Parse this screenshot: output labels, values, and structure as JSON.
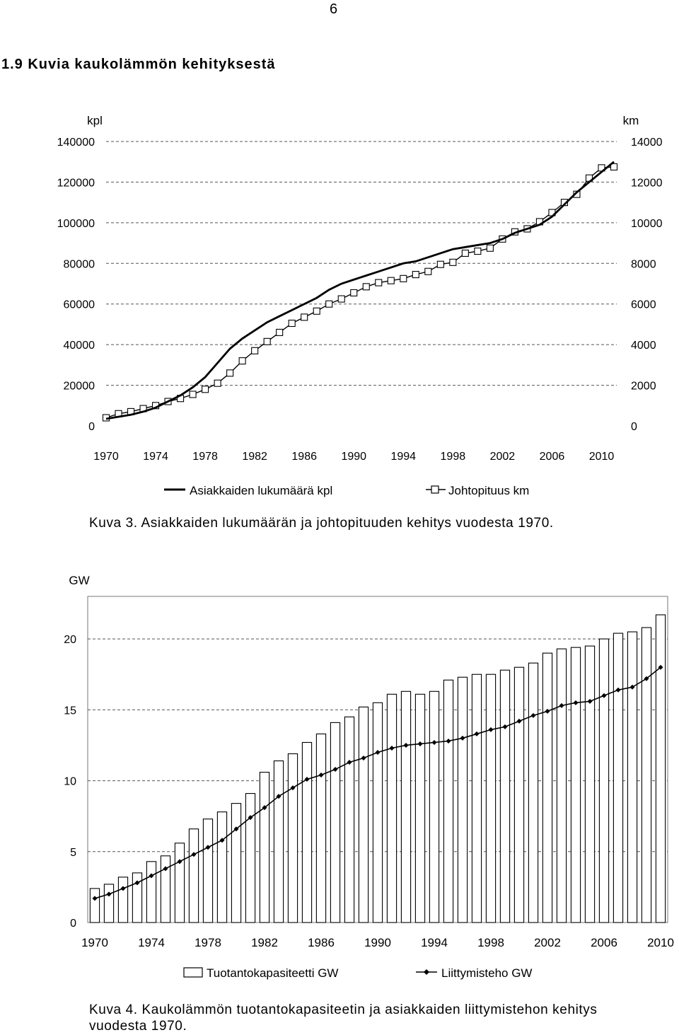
{
  "page": {
    "number": "6",
    "section_title": "1.9 Kuvia kaukolämmön kehityksestä"
  },
  "figure3": {
    "caption": "Kuva 3. Asiakkaiden lukumäärän ja johtopituuden kehitys vuodesta 1970.",
    "colors": {
      "customers_line": "#000000",
      "network_line": "#000000",
      "marker_fill": "#ffffff"
    }
  },
  "figure4": {
    "caption_line1": "Kuva 4. Kaukolämmön tuotantokapasiteetin ja asiakkaiden liittymistehon kehitys",
    "caption_line2": "vuodesta 1970.",
    "colors": {
      "bar_fill": "#ffffff",
      "bar_stroke": "#000000",
      "line": "#000000"
    }
  },
  "chart_data": [
    {
      "type": "line",
      "title": "",
      "x": [
        1970,
        1971,
        1972,
        1973,
        1974,
        1975,
        1976,
        1977,
        1978,
        1979,
        1980,
        1981,
        1982,
        1983,
        1984,
        1985,
        1986,
        1987,
        1988,
        1989,
        1990,
        1991,
        1992,
        1993,
        1994,
        1995,
        1996,
        1997,
        1998,
        1999,
        2000,
        2001,
        2002,
        2003,
        2004,
        2005,
        2006,
        2007,
        2008,
        2009,
        2010,
        2011
      ],
      "x_ticks": [
        "1970",
        "1974",
        "1978",
        "1982",
        "1986",
        "1990",
        "1994",
        "1998",
        "2002",
        "2006",
        "2010"
      ],
      "ylabel_left": "kpl",
      "ylabel_right": "km",
      "ylim_left": [
        0,
        140000
      ],
      "ylim_right": [
        0,
        14000
      ],
      "yticks_left": [
        "0",
        "20000",
        "40000",
        "60000",
        "80000",
        "100000",
        "120000",
        "140000"
      ],
      "yticks_right": [
        "0",
        "2000",
        "4000",
        "6000",
        "8000",
        "10000",
        "12000",
        "14000"
      ],
      "grid": "horizontal dashed",
      "legend": "bottom",
      "series": [
        {
          "name": "Asiakkaiden lukumäärä kpl",
          "axis": "left",
          "marker": "none",
          "values": [
            3500,
            4500,
            5500,
            7000,
            9000,
            12000,
            15000,
            19000,
            24000,
            31000,
            38000,
            43000,
            47000,
            51000,
            54000,
            57000,
            60000,
            63000,
            67000,
            70000,
            72000,
            74000,
            76000,
            78000,
            80000,
            81000,
            83000,
            85000,
            87000,
            88000,
            89000,
            90000,
            92000,
            95000,
            97000,
            99000,
            103000,
            109000,
            115000,
            120000,
            125000,
            130000
          ]
        },
        {
          "name": "Johtopituus km",
          "axis": "right",
          "marker": "square",
          "values": [
            400,
            600,
            700,
            850,
            1000,
            1200,
            1350,
            1550,
            1800,
            2100,
            2600,
            3200,
            3700,
            4150,
            4600,
            5050,
            5350,
            5650,
            6000,
            6250,
            6550,
            6850,
            7050,
            7150,
            7250,
            7450,
            7600,
            7950,
            8050,
            8500,
            8600,
            8750,
            9200,
            9550,
            9700,
            10050,
            10500,
            11000,
            11400,
            12200,
            12700,
            12750
          ]
        }
      ]
    },
    {
      "type": "bar",
      "title": "",
      "x": [
        1970,
        1971,
        1972,
        1973,
        1974,
        1975,
        1976,
        1977,
        1978,
        1979,
        1980,
        1981,
        1982,
        1983,
        1984,
        1985,
        1986,
        1987,
        1988,
        1989,
        1990,
        1991,
        1992,
        1993,
        1994,
        1995,
        1996,
        1997,
        1998,
        1999,
        2000,
        2001,
        2002,
        2003,
        2004,
        2005,
        2006,
        2007,
        2008,
        2009,
        2010
      ],
      "x_ticks": [
        "1970",
        "1974",
        "1978",
        "1982",
        "1986",
        "1990",
        "1994",
        "1998",
        "2002",
        "2006",
        "2010"
      ],
      "ylabel": "GW",
      "ylim": [
        0,
        23
      ],
      "yticks": [
        "0",
        "5",
        "10",
        "15",
        "20"
      ],
      "grid": "horizontal dashed",
      "legend": "bottom",
      "series": [
        {
          "name": "Tuotantokapasiteetti GW",
          "kind": "bar",
          "values": [
            2.4,
            2.7,
            3.2,
            3.5,
            4.3,
            4.7,
            5.6,
            6.6,
            7.3,
            7.8,
            8.4,
            9.1,
            10.6,
            11.4,
            11.9,
            12.7,
            13.3,
            14.1,
            14.5,
            15.2,
            15.5,
            16.1,
            16.3,
            16.1,
            16.3,
            17.1,
            17.3,
            17.5,
            17.5,
            17.8,
            18.0,
            18.3,
            19.0,
            19.3,
            19.4,
            19.5,
            20.0,
            20.4,
            20.5,
            20.8,
            21.7
          ]
        },
        {
          "name": "Liittymisteho GW",
          "kind": "line",
          "marker": "diamond",
          "values": [
            1.7,
            2.0,
            2.4,
            2.8,
            3.3,
            3.8,
            4.3,
            4.8,
            5.3,
            5.8,
            6.6,
            7.4,
            8.1,
            8.9,
            9.5,
            10.1,
            10.4,
            10.8,
            11.3,
            11.6,
            12.0,
            12.3,
            12.5,
            12.6,
            12.7,
            12.8,
            13.0,
            13.3,
            13.6,
            13.8,
            14.2,
            14.6,
            14.9,
            15.3,
            15.5,
            15.6,
            16.0,
            16.4,
            16.6,
            17.2,
            18.0
          ]
        }
      ]
    }
  ]
}
